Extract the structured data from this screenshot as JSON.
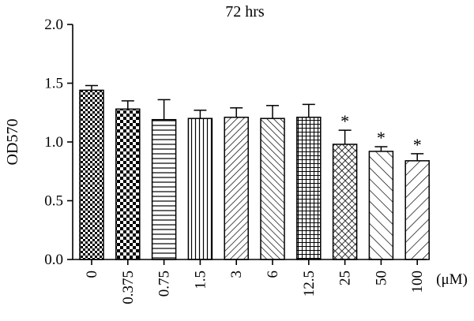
{
  "chart_data": {
    "type": "bar",
    "title": "72 hrs",
    "ylabel": "OD570",
    "x_unit": "(μM)",
    "ylim": [
      0,
      2.0
    ],
    "yticks": [
      0.0,
      0.5,
      1.0,
      1.5,
      2.0
    ],
    "ytick_labels": [
      "0.0",
      "0.5",
      "1.0",
      "1.5",
      "2.0"
    ],
    "categories": [
      "0",
      "0.375",
      "0.75",
      "1.5",
      "3",
      "6",
      "12.5",
      "25",
      "50",
      "100"
    ],
    "values": [
      1.44,
      1.28,
      1.19,
      1.2,
      1.21,
      1.2,
      1.21,
      0.98,
      0.92,
      0.84
    ],
    "errors": [
      0.04,
      0.07,
      0.17,
      0.07,
      0.08,
      0.11,
      0.11,
      0.12,
      0.04,
      0.06
    ],
    "significance": [
      "",
      "",
      "",
      "",
      "",
      "",
      "",
      "*",
      "*",
      "*"
    ],
    "patterns": [
      "checker-small",
      "checker-large",
      "horizontal",
      "vertical",
      "diag-right",
      "diag-left",
      "grid",
      "diamond",
      "diag-left-wide",
      "diag-right-wide"
    ],
    "grid": false,
    "legend": "none"
  }
}
